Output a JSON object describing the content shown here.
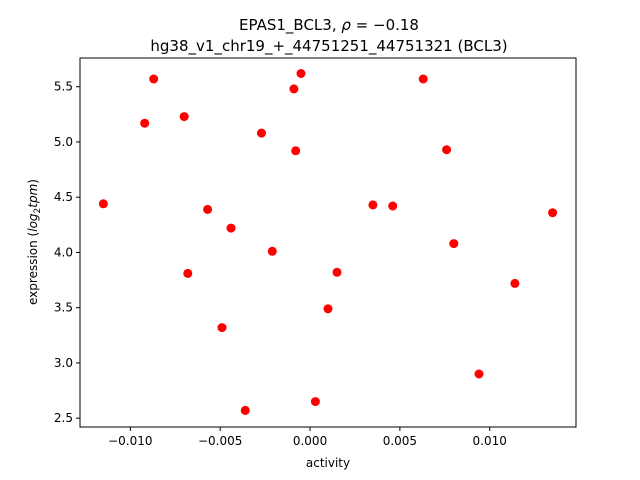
{
  "chart_data": {
    "type": "scatter",
    "title_main": "EPAS1_BCL3, ",
    "title_rho_symbol": "ρ",
    "title_rho_value": " = −0.18",
    "subtitle": "hg38_v1_chr19_+_44751251_44751321 (BCL3)",
    "xlabel": "activity",
    "ylabel_prefix": "expression (",
    "ylabel_italic": "log",
    "ylabel_sub": "2",
    "ylabel_italic2": "tpm",
    "ylabel_suffix": ")",
    "xlim": [
      -0.0128,
      0.0148
    ],
    "ylim": [
      2.42,
      5.76
    ],
    "xticks": [
      {
        "value": -0.01,
        "label": "−0.010"
      },
      {
        "value": -0.005,
        "label": "−0.005"
      },
      {
        "value": 0.0,
        "label": "0.000"
      },
      {
        "value": 0.005,
        "label": "0.005"
      },
      {
        "value": 0.01,
        "label": "0.010"
      }
    ],
    "yticks": [
      {
        "value": 2.5,
        "label": "2.5"
      },
      {
        "value": 3.0,
        "label": "3.0"
      },
      {
        "value": 3.5,
        "label": "3.5"
      },
      {
        "value": 4.0,
        "label": "4.0"
      },
      {
        "value": 4.5,
        "label": "4.5"
      },
      {
        "value": 5.0,
        "label": "5.0"
      },
      {
        "value": 5.5,
        "label": "5.5"
      }
    ],
    "grid": false,
    "marker_color": "#ff0000",
    "points": [
      {
        "x": -0.0115,
        "y": 4.44
      },
      {
        "x": -0.0092,
        "y": 5.17
      },
      {
        "x": -0.0087,
        "y": 5.57
      },
      {
        "x": -0.007,
        "y": 5.23
      },
      {
        "x": -0.0068,
        "y": 3.81
      },
      {
        "x": -0.0057,
        "y": 4.39
      },
      {
        "x": -0.0049,
        "y": 3.32
      },
      {
        "x": -0.0044,
        "y": 4.22
      },
      {
        "x": -0.0036,
        "y": 2.57
      },
      {
        "x": -0.0027,
        "y": 5.08
      },
      {
        "x": -0.0021,
        "y": 4.01
      },
      {
        "x": -0.0009,
        "y": 5.48
      },
      {
        "x": -0.0008,
        "y": 4.92
      },
      {
        "x": -0.0005,
        "y": 5.62
      },
      {
        "x": 0.0003,
        "y": 2.65
      },
      {
        "x": 0.001,
        "y": 3.49
      },
      {
        "x": 0.0015,
        "y": 3.82
      },
      {
        "x": 0.0035,
        "y": 4.43
      },
      {
        "x": 0.0046,
        "y": 4.42
      },
      {
        "x": 0.0063,
        "y": 5.57
      },
      {
        "x": 0.0076,
        "y": 4.93
      },
      {
        "x": 0.008,
        "y": 4.08
      },
      {
        "x": 0.0094,
        "y": 2.9
      },
      {
        "x": 0.0114,
        "y": 3.72
      },
      {
        "x": 0.0135,
        "y": 4.36
      }
    ]
  }
}
